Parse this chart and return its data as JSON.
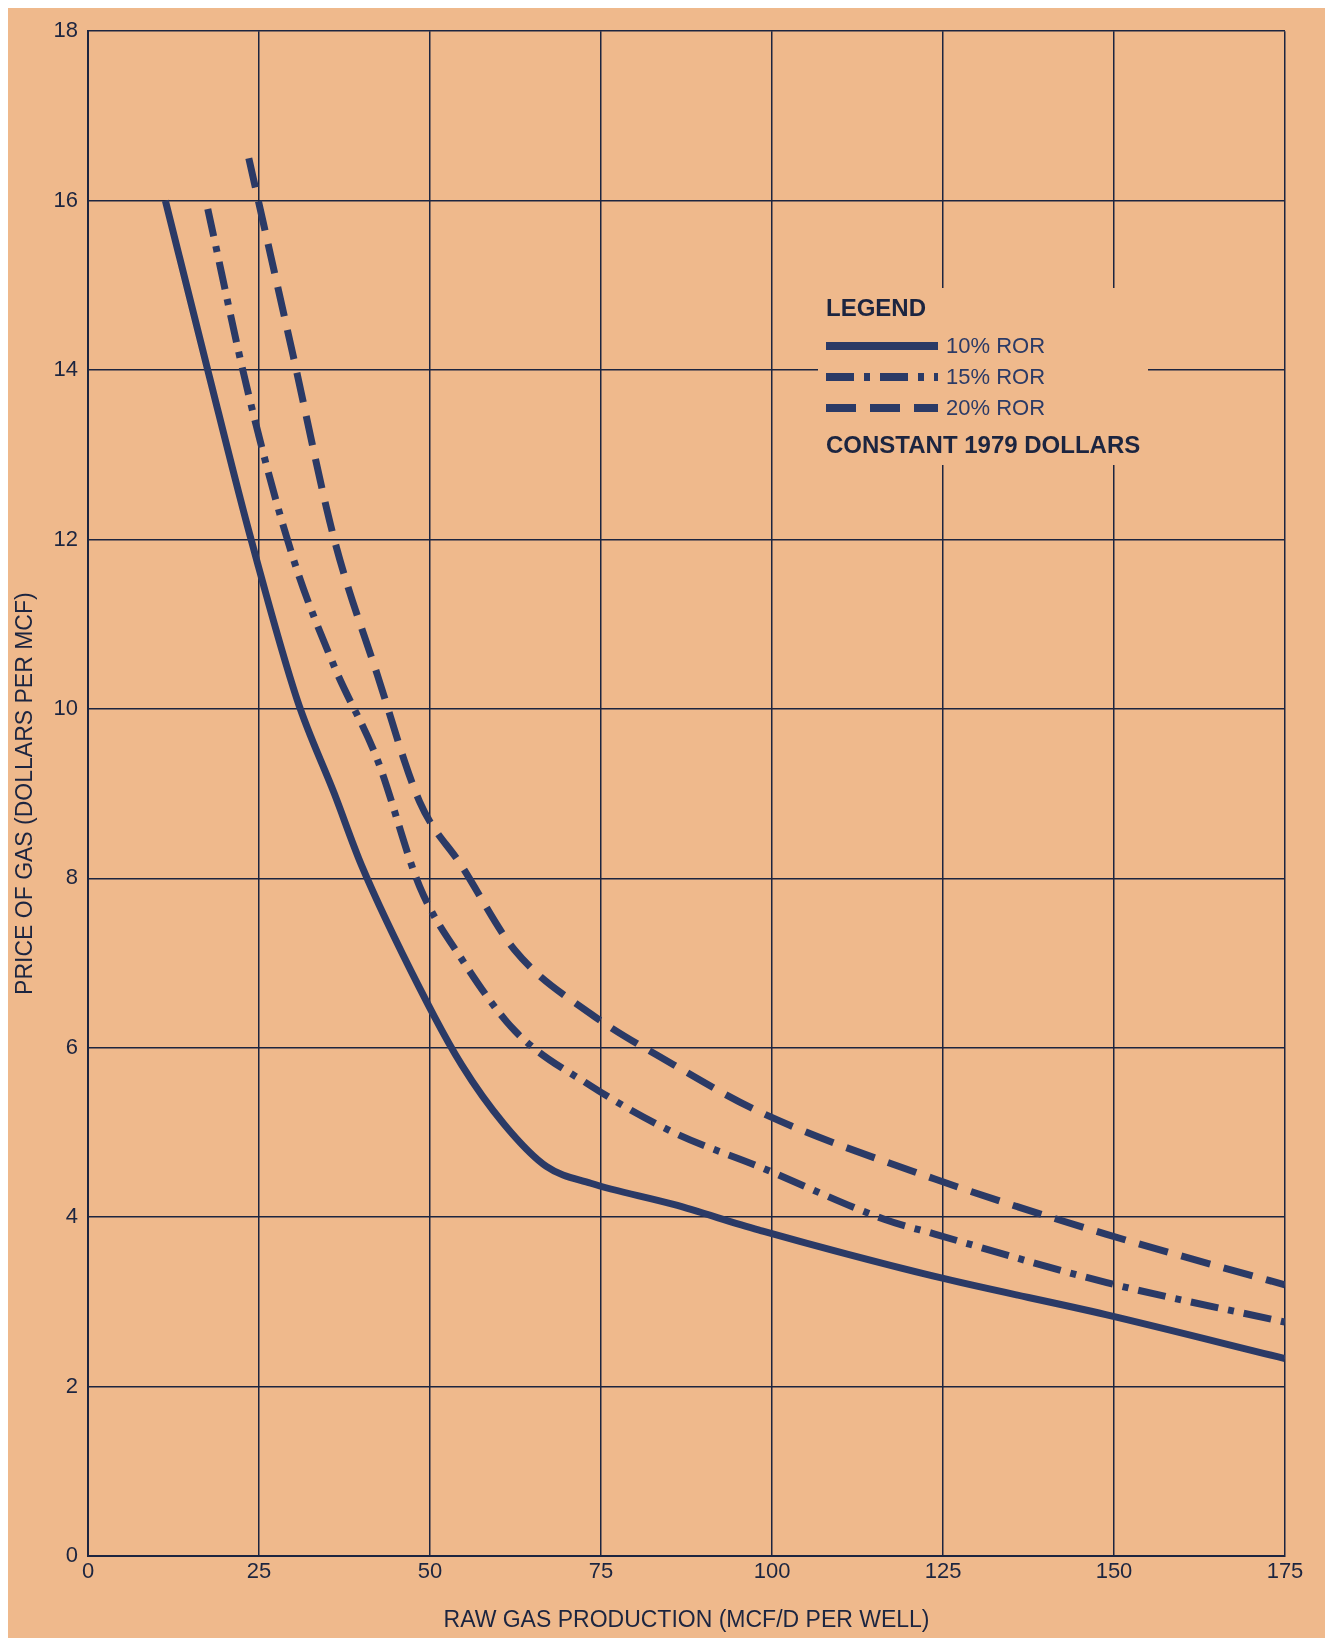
{
  "chart_data": {
    "type": "line",
    "xlabel": "RAW GAS PRODUCTION (MCF/D PER WELL)",
    "ylabel": "PRICE OF GAS (DOLLARS PER MCF)",
    "legend_title": "LEGEND",
    "annotations": [
      "CONSTANT 1979 DOLLARS"
    ],
    "xlim": [
      0,
      175
    ],
    "xticks": [
      0,
      25,
      50,
      75,
      100,
      125,
      150,
      175
    ],
    "ylim": [
      0,
      18
    ],
    "yticks": [
      0,
      2,
      4,
      6,
      8,
      10,
      12,
      14,
      16,
      18
    ],
    "grid": true,
    "legend": "top right",
    "marker": "none",
    "series": [
      {
        "name": "10% ROR",
        "color": "#2b3a66",
        "line_style": "solid",
        "x": [
          11.3,
          17.5,
          23.5,
          30.6,
          36,
          40,
          48.5,
          54.6,
          60.8,
          67,
          73.5,
          85.6,
          98,
          123.8,
          148.8,
          175
        ],
        "values": [
          16.0,
          14.0,
          12.1,
          10.1,
          9.0,
          8.15,
          6.7,
          5.8,
          5.1,
          4.6,
          4.4,
          4.15,
          3.85,
          3.3,
          2.85,
          2.33
        ]
      },
      {
        "name": "15% ROR",
        "color": "#2b3a66",
        "line_style": "dashdot",
        "x": [
          17.5,
          23.5,
          29.9,
          36,
          42.3,
          48.5,
          54.6,
          62.4,
          73.5,
          85.6,
          98,
          116.6,
          123.8,
          148.8,
          175
        ],
        "values": [
          15.9,
          13.7,
          11.8,
          10.5,
          9.4,
          7.9,
          7.05,
          6.2,
          5.55,
          5.0,
          4.6,
          3.97,
          3.8,
          3.23,
          2.76
        ]
      },
      {
        "name": "20% ROR",
        "color": "#2b3a66",
        "line_style": "dashed",
        "x": [
          23.5,
          29.9,
          36,
          42.3,
          48.5,
          54.6,
          62.4,
          73.5,
          85.6,
          98,
          123.8,
          148.8,
          175
        ],
        "values": [
          16.5,
          14.2,
          12.0,
          10.4,
          8.9,
          8.15,
          7.15,
          6.4,
          5.8,
          5.25,
          4.45,
          3.8,
          3.2
        ]
      }
    ]
  }
}
